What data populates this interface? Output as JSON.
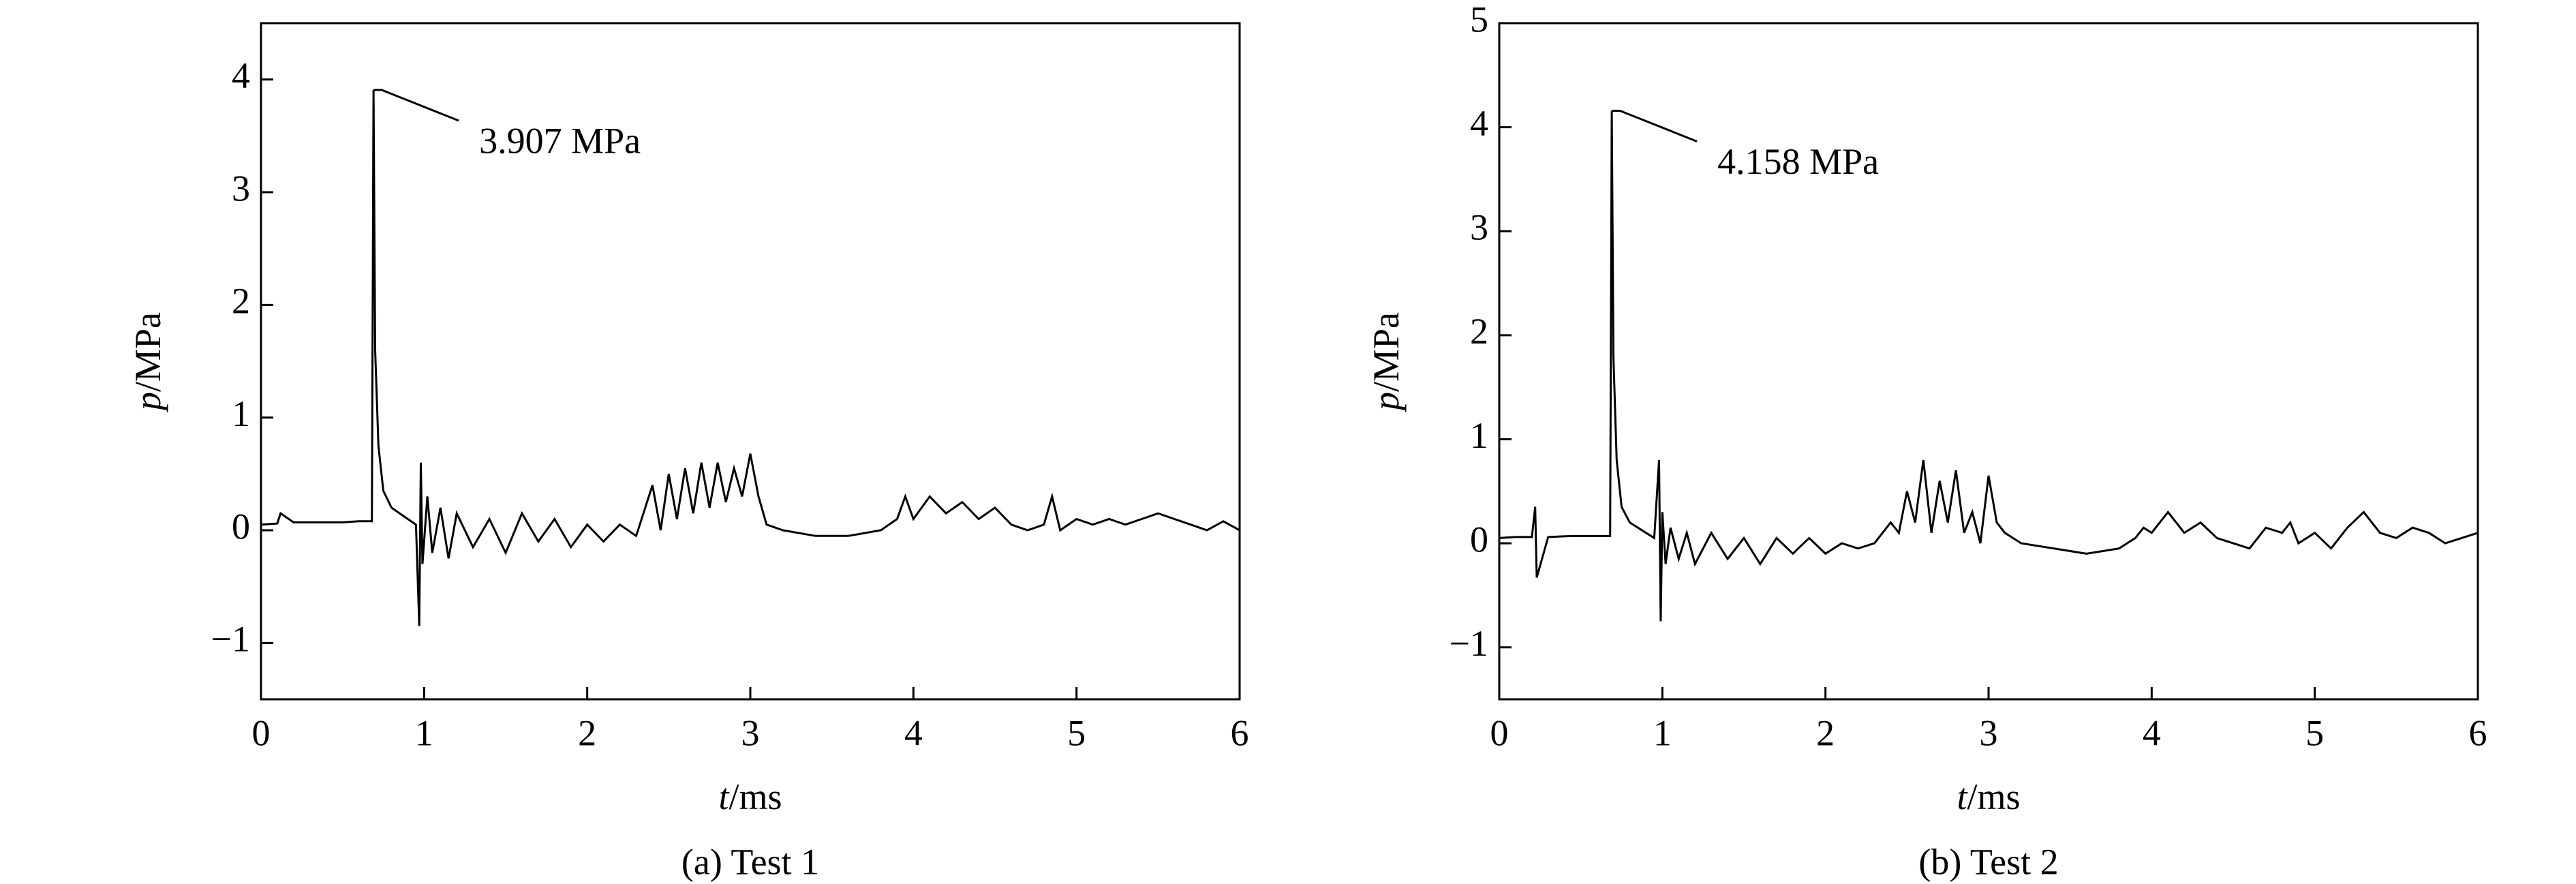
{
  "chart_data": [
    {
      "type": "line",
      "caption": "(a) Test 1",
      "xlabel": "t/ms",
      "ylabel": "p/MPa",
      "xlim": [
        0,
        6
      ],
      "xticks": [
        0,
        1,
        2,
        3,
        4,
        5,
        6
      ],
      "ylim": [
        -1.5,
        4.5
      ],
      "yticks": [
        {
          "value": -1,
          "label": "−1"
        },
        0,
        1,
        2,
        3,
        4
      ],
      "color": "#000000",
      "annotation": {
        "text": "3.907 MPa",
        "x": 0.69,
        "y": 3.907
      },
      "x": [
        0,
        0.1,
        0.12,
        0.2,
        0.3,
        0.4,
        0.5,
        0.6,
        0.68,
        0.69,
        0.7,
        0.72,
        0.75,
        0.8,
        0.85,
        0.9,
        0.95,
        0.97,
        0.98,
        0.99,
        1.02,
        1.05,
        1.1,
        1.15,
        1.2,
        1.3,
        1.4,
        1.5,
        1.6,
        1.7,
        1.8,
        1.9,
        2.0,
        2.1,
        2.2,
        2.3,
        2.4,
        2.45,
        2.5,
        2.55,
        2.6,
        2.65,
        2.7,
        2.75,
        2.8,
        2.85,
        2.9,
        2.95,
        3.0,
        3.05,
        3.1,
        3.2,
        3.4,
        3.6,
        3.8,
        3.9,
        3.95,
        4.0,
        4.1,
        4.2,
        4.3,
        4.4,
        4.5,
        4.6,
        4.7,
        4.8,
        4.85,
        4.9,
        5.0,
        5.1,
        5.2,
        5.3,
        5.4,
        5.5,
        5.6,
        5.7,
        5.8,
        5.9,
        6.0
      ],
      "values": [
        0.05,
        0.06,
        0.15,
        0.07,
        0.07,
        0.07,
        0.07,
        0.08,
        0.08,
        3.907,
        1.6,
        0.75,
        0.35,
        0.2,
        0.15,
        0.1,
        0.05,
        -0.85,
        0.6,
        -0.3,
        0.3,
        -0.2,
        0.2,
        -0.25,
        0.15,
        -0.15,
        0.1,
        -0.2,
        0.15,
        -0.1,
        0.1,
        -0.15,
        0.05,
        -0.1,
        0.05,
        -0.05,
        0.4,
        0.0,
        0.5,
        0.1,
        0.55,
        0.15,
        0.6,
        0.2,
        0.6,
        0.25,
        0.55,
        0.3,
        0.68,
        0.3,
        0.05,
        0,
        -0.05,
        -0.05,
        0.0,
        0.1,
        0.3,
        0.1,
        0.3,
        0.15,
        0.25,
        0.1,
        0.2,
        0.05,
        0.0,
        0.05,
        0.3,
        0.0,
        0.1,
        0.05,
        0.1,
        0.05,
        0.1,
        0.15,
        0.1,
        0.05,
        0.0,
        0.08,
        0.0
      ]
    },
    {
      "type": "line",
      "caption": "(b) Test 2",
      "xlabel": "t/ms",
      "ylabel": "p/MPa",
      "xlim": [
        0,
        6
      ],
      "xticks": [
        0,
        1,
        2,
        3,
        4,
        5,
        6
      ],
      "ylim": [
        -1.5,
        5
      ],
      "yticks": [
        {
          "value": -1,
          "label": "−1"
        },
        0,
        1,
        2,
        3,
        4,
        5
      ],
      "color": "#000000",
      "annotation": {
        "text": "4.158 MPa",
        "x": 0.69,
        "y": 4.158
      },
      "x": [
        0,
        0.1,
        0.2,
        0.22,
        0.23,
        0.3,
        0.45,
        0.6,
        0.68,
        0.69,
        0.7,
        0.72,
        0.75,
        0.8,
        0.85,
        0.9,
        0.95,
        0.98,
        0.99,
        1.0,
        1.02,
        1.05,
        1.1,
        1.15,
        1.2,
        1.3,
        1.4,
        1.5,
        1.6,
        1.7,
        1.8,
        1.9,
        2.0,
        2.1,
        2.2,
        2.3,
        2.4,
        2.45,
        2.5,
        2.55,
        2.6,
        2.65,
        2.7,
        2.75,
        2.8,
        2.85,
        2.9,
        2.95,
        3.0,
        3.05,
        3.1,
        3.2,
        3.4,
        3.6,
        3.8,
        3.9,
        3.95,
        4.0,
        4.1,
        4.2,
        4.3,
        4.4,
        4.5,
        4.6,
        4.7,
        4.8,
        4.85,
        4.9,
        5.0,
        5.1,
        5.2,
        5.3,
        5.4,
        5.5,
        5.6,
        5.7,
        5.8,
        5.9,
        6.0
      ],
      "values": [
        0.05,
        0.06,
        0.06,
        0.35,
        -0.33,
        0.06,
        0.07,
        0.07,
        0.07,
        4.158,
        1.8,
        0.8,
        0.35,
        0.2,
        0.15,
        0.1,
        0.05,
        0.8,
        -0.75,
        0.3,
        -0.2,
        0.15,
        -0.15,
        0.1,
        -0.2,
        0.1,
        -0.15,
        0.05,
        -0.2,
        0.05,
        -0.1,
        0.05,
        -0.1,
        0.0,
        -0.05,
        0.0,
        0.2,
        0.1,
        0.5,
        0.2,
        0.8,
        0.1,
        0.6,
        0.2,
        0.7,
        0.1,
        0.3,
        0.0,
        0.65,
        0.2,
        0.1,
        0.0,
        -0.05,
        -0.1,
        -0.05,
        0.05,
        0.15,
        0.1,
        0.3,
        0.1,
        0.2,
        0.05,
        0.0,
        -0.05,
        0.15,
        0.1,
        0.2,
        0.0,
        0.1,
        -0.05,
        0.15,
        0.3,
        0.1,
        0.05,
        0.15,
        0.1,
        0.0,
        0.05,
        0.1
      ]
    }
  ]
}
